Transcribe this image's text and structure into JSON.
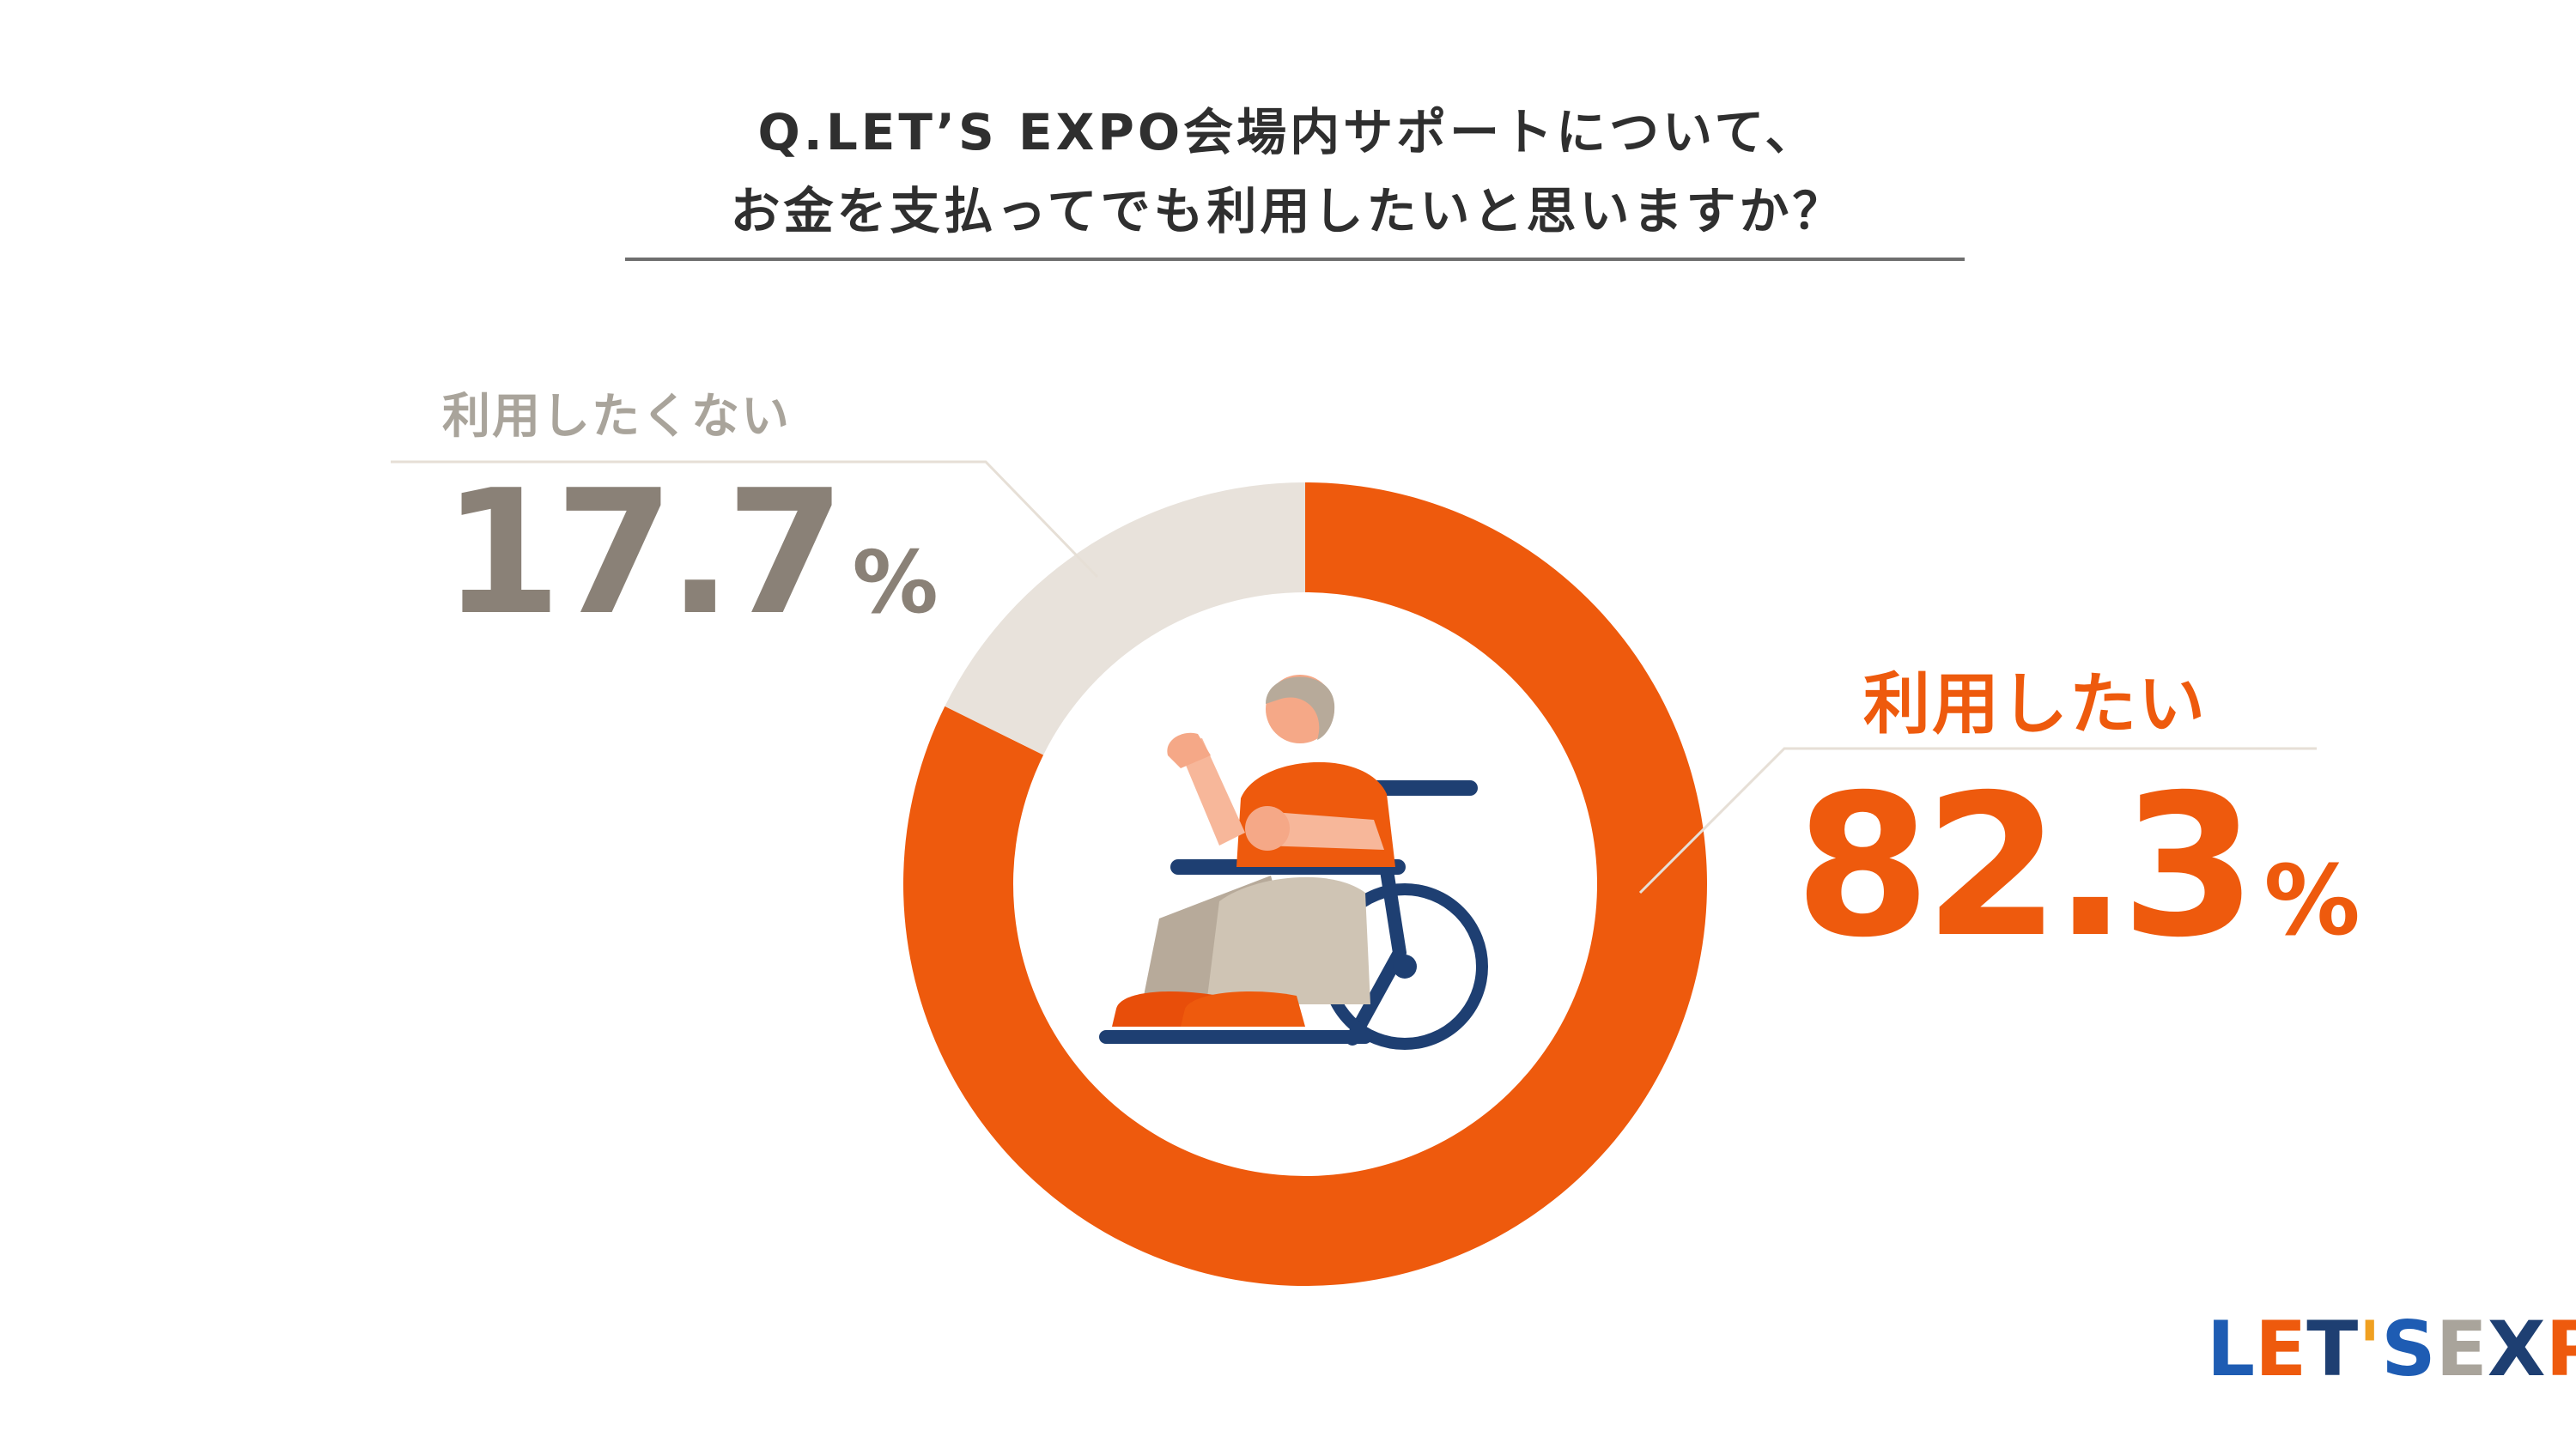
{
  "title": {
    "line1": "Q.LET’S EXPO会場内サポートについて、",
    "line2": "お金を支払ってでも利用したいと思いますか？"
  },
  "chart_data": {
    "type": "pie",
    "donut": true,
    "categories": [
      "利用したい",
      "利用したくない"
    ],
    "values": [
      82.3,
      17.7
    ],
    "unit": "%",
    "colors": [
      "#ee5a0d",
      "#e8e2db"
    ],
    "start": "top",
    "direction": "clockwise"
  },
  "labels": {
    "yes": {
      "category": "利用したい",
      "value": "82.3",
      "unit": "%"
    },
    "no": {
      "category": "利用したくない",
      "value": "17.7",
      "unit": "%"
    }
  },
  "logo": {
    "text": "LET'S EXPO"
  },
  "colors": {
    "accent": "#ee5a0d",
    "neutral_text": "#8a8177",
    "neutral_light": "#a9a49b",
    "navy": "#1e3f72"
  },
  "icons": [
    "wheelchair-user-icon"
  ]
}
